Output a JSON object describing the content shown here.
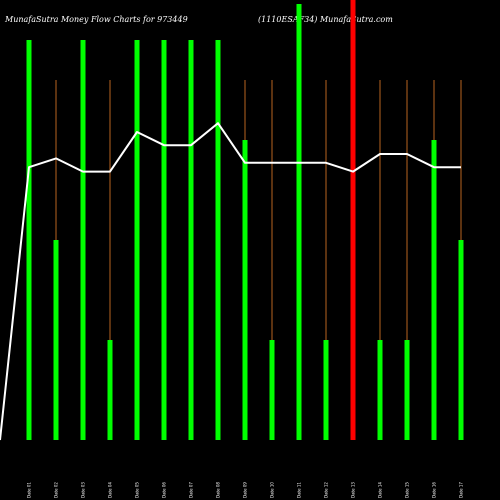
{
  "chart_data": {
    "type": "bar",
    "title_left": "MunafaSutra  Money Flow  Charts for 973449",
    "title_right": "(1110ESAF34) MunafaSutra.com",
    "xlabel": "",
    "ylabel": "",
    "grid": false,
    "categories": [
      "Date 01",
      "Date 02",
      "Date 03",
      "Date 04",
      "Date 05",
      "Date 06",
      "Date 07",
      "Date 08",
      "Date 09",
      "Date 10",
      "Date 11",
      "Date 12",
      "Date 13",
      "Date 14",
      "Date 15",
      "Date 16",
      "Date 17"
    ],
    "values": [
      100,
      50,
      100,
      25,
      100,
      100,
      100,
      100,
      75,
      25,
      109,
      25,
      111,
      25,
      25,
      75,
      50
    ],
    "colors": [
      "green",
      "green",
      "green",
      "green",
      "green",
      "green",
      "green",
      "green",
      "green",
      "green",
      "green",
      "green",
      "red",
      "green",
      "green",
      "green",
      "green"
    ],
    "ylim": [
      0,
      110
    ],
    "line": {
      "y0": 0,
      "values": [
        62,
        64,
        61,
        61,
        70,
        67,
        67,
        72,
        63,
        63,
        63,
        63,
        61,
        65,
        65,
        62,
        62
      ],
      "ylim": [
        0,
        100
      ]
    },
    "palette": {
      "background": "#000000",
      "green": "#00ff00",
      "red": "#ff0000",
      "line": "#ffffff",
      "stem": "#b8651f"
    }
  }
}
